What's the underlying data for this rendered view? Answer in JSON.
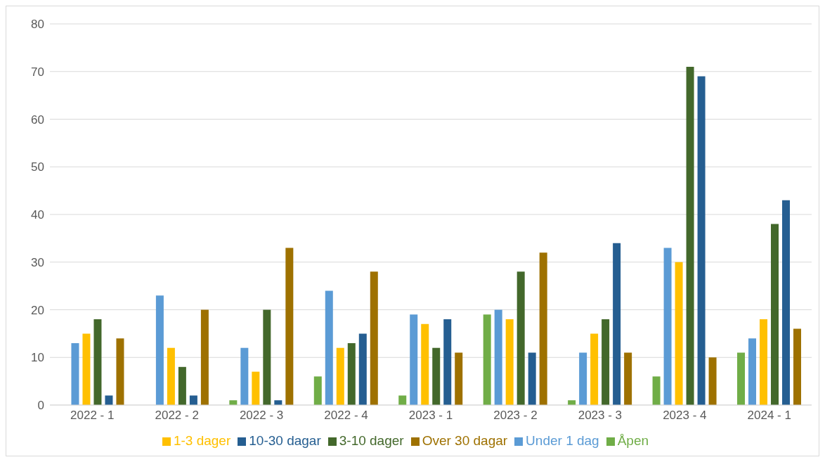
{
  "chart_data": {
    "type": "bar",
    "categories": [
      "2022 - 1",
      "2022 - 2",
      "2022 - 3",
      "2022 - 4",
      "2023 - 1",
      "2023 - 2",
      "2023 - 3",
      "2023 - 4",
      "2024 - 1"
    ],
    "series": [
      {
        "name": "Åpen",
        "color": "#70ad47",
        "values": [
          0,
          0,
          1,
          6,
          2,
          19,
          1,
          6,
          11
        ]
      },
      {
        "name": "Under 1 dag",
        "color": "#5b9bd5",
        "values": [
          13,
          23,
          12,
          24,
          19,
          20,
          11,
          33,
          14
        ]
      },
      {
        "name": "1-3 dager",
        "color": "#ffc000",
        "values": [
          15,
          12,
          7,
          12,
          17,
          18,
          15,
          30,
          18
        ]
      },
      {
        "name": "3-10 dager",
        "color": "#43682b",
        "values": [
          18,
          8,
          20,
          13,
          12,
          28,
          18,
          71,
          38
        ]
      },
      {
        "name": "10-30 dagar",
        "color": "#255e91",
        "values": [
          2,
          2,
          1,
          15,
          18,
          11,
          34,
          69,
          43
        ]
      },
      {
        "name": "Over 30 dagar",
        "color": "#9e7100",
        "values": [
          14,
          20,
          33,
          28,
          11,
          32,
          11,
          10,
          16
        ]
      }
    ],
    "ylim": [
      0,
      80
    ],
    "yticks": [
      0,
      10,
      20,
      30,
      40,
      50,
      60,
      70,
      80
    ],
    "grid": "y",
    "legend": "bottom"
  }
}
